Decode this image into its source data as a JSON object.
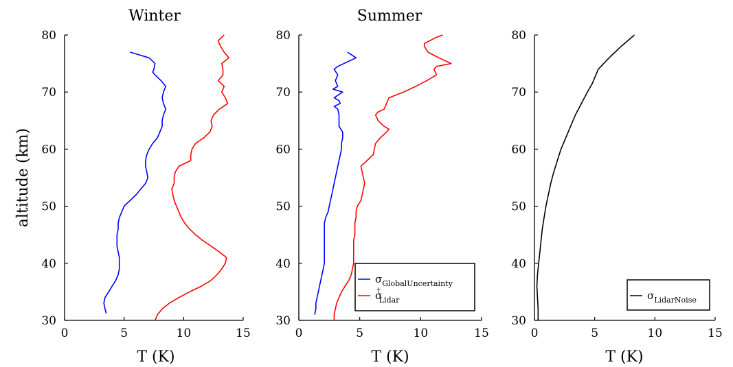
{
  "chart_data": [
    {
      "type": "line",
      "title": "Winter",
      "xlabel": "T (K)",
      "ylabel": "altitude (km)",
      "xlim": [
        0,
        15
      ],
      "ylim": [
        30,
        80
      ],
      "xticks": [
        "0",
        "5",
        "10",
        "15"
      ],
      "yticks": [
        "30",
        "40",
        "50",
        "60",
        "70",
        "80"
      ],
      "grid": false,
      "legend": null,
      "series": [
        {
          "color": "#0000ff",
          "points": [
            [
              5.5,
              77
            ],
            [
              7.1,
              76
            ],
            [
              7.6,
              75
            ],
            [
              7.5,
              74
            ],
            [
              7.4,
              73.5
            ],
            [
              7.6,
              73
            ],
            [
              8.1,
              72
            ],
            [
              8.5,
              71
            ],
            [
              8.3,
              70
            ],
            [
              8.2,
              69
            ],
            [
              8.3,
              68
            ],
            [
              8.5,
              67
            ],
            [
              8.3,
              66
            ],
            [
              8.2,
              65
            ],
            [
              8.2,
              64
            ],
            [
              8.0,
              63
            ],
            [
              7.8,
              62
            ],
            [
              7.4,
              61
            ],
            [
              7.1,
              60
            ],
            [
              6.9,
              59
            ],
            [
              6.8,
              58
            ],
            [
              6.8,
              57
            ],
            [
              6.9,
              56
            ],
            [
              7.0,
              55
            ],
            [
              6.8,
              54
            ],
            [
              6.4,
              53
            ],
            [
              6.0,
              52
            ],
            [
              5.5,
              51
            ],
            [
              5.0,
              50
            ],
            [
              4.8,
              49
            ],
            [
              4.6,
              48
            ],
            [
              4.5,
              47
            ],
            [
              4.5,
              46
            ],
            [
              4.4,
              45
            ],
            [
              4.4,
              44
            ],
            [
              4.4,
              43
            ],
            [
              4.5,
              42
            ],
            [
              4.6,
              41
            ],
            [
              4.6,
              40
            ],
            [
              4.6,
              39
            ],
            [
              4.5,
              38
            ],
            [
              4.3,
              37
            ],
            [
              4.0,
              36
            ],
            [
              3.7,
              35
            ],
            [
              3.4,
              34
            ],
            [
              3.3,
              33
            ],
            [
              3.4,
              32
            ],
            [
              3.5,
              31.2
            ]
          ]
        },
        {
          "color": "#ff0000",
          "points": [
            [
              13.4,
              80
            ],
            [
              12.9,
              79
            ],
            [
              13.1,
              78
            ],
            [
              13.4,
              77
            ],
            [
              13.8,
              76
            ],
            [
              13.2,
              75
            ],
            [
              13.3,
              74
            ],
            [
              13.3,
              73
            ],
            [
              12.9,
              72
            ],
            [
              13.4,
              71
            ],
            [
              13.2,
              70
            ],
            [
              13.5,
              69
            ],
            [
              13.7,
              68
            ],
            [
              13.0,
              67
            ],
            [
              12.5,
              66
            ],
            [
              12.3,
              65
            ],
            [
              12.4,
              64
            ],
            [
              12.2,
              63
            ],
            [
              11.7,
              62
            ],
            [
              11.0,
              61
            ],
            [
              10.7,
              60
            ],
            [
              10.6,
              59
            ],
            [
              10.6,
              58
            ],
            [
              9.6,
              57
            ],
            [
              9.3,
              56
            ],
            [
              9.2,
              55
            ],
            [
              9.2,
              54
            ],
            [
              9.0,
              53
            ],
            [
              9.1,
              52
            ],
            [
              9.2,
              51
            ],
            [
              9.4,
              50
            ],
            [
              9.6,
              49
            ],
            [
              9.8,
              48
            ],
            [
              10.1,
              47
            ],
            [
              10.5,
              46
            ],
            [
              11.0,
              45
            ],
            [
              11.6,
              44
            ],
            [
              12.3,
              43
            ],
            [
              13.0,
              42
            ],
            [
              13.6,
              41
            ],
            [
              13.5,
              40
            ],
            [
              13.2,
              39
            ],
            [
              12.8,
              38
            ],
            [
              12.3,
              37
            ],
            [
              11.5,
              36
            ],
            [
              10.5,
              35
            ],
            [
              9.6,
              34
            ],
            [
              8.8,
              33
            ],
            [
              8.2,
              32
            ],
            [
              7.8,
              31
            ],
            [
              7.6,
              30
            ]
          ]
        }
      ]
    },
    {
      "type": "line",
      "title": "Summer",
      "xlabel": "T (K)",
      "ylabel": "",
      "xlim": [
        0,
        15
      ],
      "ylim": [
        30,
        80
      ],
      "xticks": [
        "0",
        "5",
        "10",
        "15"
      ],
      "yticks": [
        "30",
        "40",
        "50",
        "60",
        "70",
        "80"
      ],
      "grid": false,
      "legend": "bottom-right",
      "series": [
        {
          "name": "σ",
          "name_sub": "GlobalUncertainty",
          "color": "#0000ff",
          "points": [
            [
              4.0,
              77
            ],
            [
              4.7,
              76
            ],
            [
              3.2,
              74.5
            ],
            [
              2.9,
              74
            ],
            [
              3.2,
              73
            ],
            [
              3.0,
              72
            ],
            [
              3.2,
              71
            ],
            [
              2.8,
              70.5
            ],
            [
              3.6,
              70
            ],
            [
              2.9,
              69
            ],
            [
              3.3,
              68.5
            ],
            [
              3.4,
              68
            ],
            [
              2.9,
              67.5
            ],
            [
              3.2,
              67
            ],
            [
              3.3,
              66
            ],
            [
              3.3,
              65
            ],
            [
              3.3,
              64
            ],
            [
              3.6,
              63
            ],
            [
              3.6,
              62
            ],
            [
              3.5,
              61
            ],
            [
              3.5,
              60
            ],
            [
              3.4,
              59
            ],
            [
              3.3,
              58
            ],
            [
              3.2,
              57
            ],
            [
              3.1,
              56
            ],
            [
              3.0,
              55
            ],
            [
              2.9,
              54
            ],
            [
              2.8,
              53
            ],
            [
              2.7,
              52
            ],
            [
              2.6,
              51
            ],
            [
              2.5,
              50
            ],
            [
              2.4,
              49
            ],
            [
              2.2,
              48
            ],
            [
              2.1,
              47
            ],
            [
              2.1,
              46
            ],
            [
              2.1,
              45
            ],
            [
              2.1,
              44
            ],
            [
              2.1,
              43
            ],
            [
              2.1,
              42
            ],
            [
              2.1,
              41
            ],
            [
              2.1,
              40
            ],
            [
              2.0,
              39
            ],
            [
              1.9,
              38
            ],
            [
              1.8,
              37
            ],
            [
              1.7,
              36
            ],
            [
              1.6,
              35
            ],
            [
              1.5,
              34
            ],
            [
              1.4,
              33
            ],
            [
              1.4,
              32
            ],
            [
              1.3,
              31
            ]
          ]
        },
        {
          "name": "σ",
          "name_sub": "Lidar",
          "name_sup": "†",
          "color": "#ff0000",
          "points": [
            [
              11.8,
              80
            ],
            [
              11.2,
              79.5
            ],
            [
              10.3,
              78.5
            ],
            [
              10.3,
              78
            ],
            [
              10.6,
              77
            ],
            [
              11.5,
              76
            ],
            [
              12.5,
              75
            ],
            [
              11.3,
              74.5
            ],
            [
              11.1,
              74
            ],
            [
              11.3,
              73
            ],
            [
              10.5,
              72
            ],
            [
              9.6,
              71
            ],
            [
              8.6,
              70
            ],
            [
              7.4,
              69
            ],
            [
              7.2,
              68
            ],
            [
              7.0,
              67
            ],
            [
              6.5,
              66.5
            ],
            [
              6.3,
              66
            ],
            [
              6.5,
              65
            ],
            [
              7.0,
              64
            ],
            [
              7.4,
              63.5
            ],
            [
              7.2,
              63
            ],
            [
              6.7,
              62
            ],
            [
              6.3,
              61
            ],
            [
              6.2,
              60
            ],
            [
              6.1,
              59
            ],
            [
              5.6,
              58
            ],
            [
              5.1,
              57
            ],
            [
              5.2,
              56
            ],
            [
              5.3,
              55
            ],
            [
              5.4,
              54
            ],
            [
              5.3,
              53
            ],
            [
              5.2,
              52
            ],
            [
              5.1,
              51
            ],
            [
              4.8,
              50
            ],
            [
              4.7,
              49
            ],
            [
              4.7,
              48
            ],
            [
              4.6,
              47
            ],
            [
              4.6,
              46
            ],
            [
              4.6,
              45
            ],
            [
              4.5,
              44
            ],
            [
              4.5,
              43
            ],
            [
              4.5,
              42
            ],
            [
              4.5,
              41
            ],
            [
              4.5,
              40
            ],
            [
              4.4,
              39
            ],
            [
              4.3,
              38
            ],
            [
              4.1,
              37
            ],
            [
              3.8,
              36
            ],
            [
              3.5,
              35
            ],
            [
              3.3,
              34
            ],
            [
              3.1,
              33
            ],
            [
              3.0,
              32
            ],
            [
              2.9,
              31
            ],
            [
              2.9,
              30
            ]
          ]
        }
      ]
    },
    {
      "type": "line",
      "title": "",
      "xlabel": "T (K)",
      "ylabel": "",
      "xlim": [
        0,
        15
      ],
      "ylim": [
        30,
        80
      ],
      "xticks": [
        "0",
        "5",
        "10",
        "15"
      ],
      "yticks": [
        "30",
        "40",
        "50",
        "60",
        "70",
        "80"
      ],
      "grid": false,
      "legend": "bottom-right",
      "series": [
        {
          "name": "σ",
          "name_sub": "LidarNoise",
          "color": "#000000",
          "points": [
            [
              0.3,
              30
            ],
            [
              0.3,
              32
            ],
            [
              0.25,
              34
            ],
            [
              0.2,
              36
            ],
            [
              0.25,
              38
            ],
            [
              0.35,
              40
            ],
            [
              0.45,
              42
            ],
            [
              0.55,
              44
            ],
            [
              0.65,
              46
            ],
            [
              0.8,
              48
            ],
            [
              0.95,
              50
            ],
            [
              1.15,
              52
            ],
            [
              1.35,
              54
            ],
            [
              1.6,
              56
            ],
            [
              1.9,
              58
            ],
            [
              2.2,
              60
            ],
            [
              2.6,
              62
            ],
            [
              3.0,
              64
            ],
            [
              3.4,
              66
            ],
            [
              3.9,
              68
            ],
            [
              4.4,
              70
            ],
            [
              4.8,
              71.5
            ],
            [
              5.3,
              74
            ],
            [
              6.2,
              76
            ],
            [
              7.2,
              78
            ],
            [
              8.3,
              80
            ]
          ]
        }
      ]
    }
  ]
}
